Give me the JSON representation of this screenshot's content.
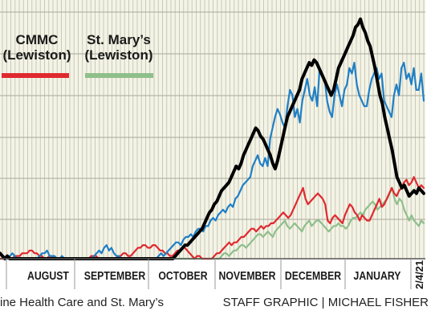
{
  "chart_data": {
    "type": "line",
    "x_labels": [
      "AUGUST",
      "SEPTEMBER",
      "OCTOBER",
      "NOVEMBER",
      "DECEMBER",
      "JANUARY"
    ],
    "end_date_label": "2/4/21",
    "series": [
      {
        "color": "#1f7fc6",
        "values": [
          2,
          1,
          0,
          0,
          1,
          2,
          1,
          0,
          0,
          0,
          0,
          0,
          0,
          0,
          0,
          0,
          1,
          2,
          2,
          3,
          1,
          1,
          1,
          0,
          0,
          1,
          0,
          0,
          0,
          0,
          0,
          0,
          0,
          0,
          0,
          0,
          0,
          0,
          1,
          2,
          3,
          2,
          4,
          5,
          3,
          4,
          2,
          1,
          1,
          0,
          0,
          0,
          0,
          0,
          0,
          0,
          0,
          0,
          0,
          0,
          0,
          0,
          0,
          0,
          1,
          2,
          1,
          2,
          3,
          4,
          5,
          6,
          6,
          5,
          7,
          8,
          8,
          9,
          8,
          10,
          11,
          11,
          10,
          12,
          12,
          14,
          15,
          14,
          16,
          17,
          18,
          17,
          19,
          20,
          19,
          22,
          23,
          25,
          27,
          28,
          29,
          30,
          34,
          36,
          38,
          35,
          34,
          37,
          34,
          44,
          48,
          52,
          55,
          53,
          50,
          48,
          56,
          62,
          60,
          52,
          55,
          50,
          58,
          62,
          66,
          60,
          58,
          63,
          56,
          70,
          68,
          66,
          58,
          54,
          52,
          60,
          64,
          60,
          56,
          62,
          64,
          70,
          68,
          72,
          64,
          60,
          58,
          56,
          56,
          62,
          66,
          68,
          70,
          66,
          68,
          58,
          56,
          54,
          52,
          60,
          64,
          60,
          70,
          72,
          66,
          68,
          64,
          70,
          62,
          62,
          68,
          58
        ]
      },
      {
        "color": "#e0292f",
        "values": [
          0,
          0,
          0,
          0,
          0,
          0,
          1,
          1,
          1,
          2,
          2,
          2,
          3,
          3,
          2,
          2,
          1,
          1,
          0,
          0,
          1,
          1,
          0,
          0,
          0,
          0,
          0,
          0,
          0,
          0,
          0,
          0,
          0,
          0,
          0,
          0,
          0,
          1,
          1,
          1,
          0,
          0,
          0,
          0,
          0,
          0,
          0,
          0,
          1,
          1,
          2,
          2,
          1,
          1,
          2,
          3,
          4,
          4,
          5,
          5,
          4,
          4,
          5,
          5,
          4,
          3,
          3,
          2,
          2,
          1,
          1,
          2,
          3,
          3,
          4,
          4,
          3,
          2,
          1,
          0,
          1,
          1,
          0,
          0,
          0,
          0,
          0,
          1,
          2,
          2,
          3,
          4,
          5,
          6,
          5,
          6,
          6,
          7,
          8,
          8,
          9,
          10,
          11,
          11,
          10,
          11,
          12,
          11,
          12,
          12,
          13,
          13,
          14,
          15,
          16,
          17,
          16,
          15,
          16,
          18,
          20,
          22,
          24,
          26,
          22,
          20,
          21,
          22,
          23,
          24,
          23,
          22,
          20,
          14,
          13,
          15,
          16,
          15,
          14,
          13,
          16,
          18,
          20,
          19,
          17,
          16,
          14,
          16,
          15,
          14,
          14,
          16,
          18,
          20,
          22,
          19,
          20,
          22,
          24,
          26,
          24,
          23,
          25,
          26,
          28,
          29,
          27,
          28,
          30,
          28,
          26,
          27,
          26
        ]
      },
      {
        "color": "#8fbf8b",
        "values": [
          0,
          0,
          0,
          0,
          0,
          0,
          0,
          0,
          0,
          0,
          0,
          0,
          0,
          0,
          0,
          0,
          0,
          0,
          0,
          0,
          0,
          0,
          0,
          0,
          0,
          0,
          0,
          0,
          0,
          0,
          0,
          0,
          0,
          0,
          0,
          0,
          0,
          0,
          0,
          0,
          0,
          0,
          0,
          0,
          0,
          0,
          0,
          0,
          0,
          0,
          0,
          0,
          0,
          0,
          0,
          0,
          0,
          0,
          0,
          0,
          0,
          0,
          0,
          0,
          0,
          0,
          0,
          0,
          0,
          0,
          0,
          0,
          0,
          0,
          0,
          0,
          0,
          0,
          0,
          0,
          0,
          0,
          0,
          0,
          0,
          0,
          0,
          0,
          0,
          0,
          0,
          1,
          2,
          2,
          1,
          2,
          3,
          3,
          4,
          5,
          5,
          4,
          5,
          6,
          7,
          8,
          9,
          9,
          8,
          9,
          10,
          9,
          8,
          10,
          11,
          12,
          13,
          14,
          12,
          11,
          12,
          13,
          12,
          11,
          10,
          12,
          13,
          14,
          12,
          13,
          14,
          14,
          13,
          12,
          11,
          10,
          11,
          12,
          12,
          13,
          12,
          12,
          11,
          12,
          14,
          15,
          15,
          16,
          17,
          16,
          18,
          19,
          20,
          21,
          20,
          18,
          19,
          20,
          21,
          22,
          24,
          26,
          22,
          20,
          22,
          21,
          18,
          16,
          14,
          16,
          14,
          13,
          12,
          14,
          13
        ]
      },
      {
        "color": "#000000",
        "values": [
          2,
          1,
          0,
          1,
          0,
          0,
          0,
          0,
          0,
          0,
          0,
          0,
          0,
          0,
          0,
          0,
          0,
          0,
          0,
          0,
          0,
          0,
          0,
          0,
          0,
          0,
          0,
          0,
          0,
          0,
          0,
          0,
          0,
          0,
          0,
          0,
          0,
          0,
          0,
          0,
          0,
          0,
          0,
          0,
          0,
          0,
          0,
          0,
          0,
          0,
          0,
          0,
          0,
          0,
          0,
          0,
          0,
          0,
          0,
          0,
          0,
          0,
          0,
          0,
          0,
          0,
          0,
          0,
          0,
          0,
          0,
          0,
          1,
          2,
          3,
          4,
          5,
          5,
          6,
          7,
          8,
          9,
          10,
          11,
          13,
          15,
          17,
          18,
          20,
          21,
          23,
          25,
          26,
          27,
          28,
          30,
          32,
          34,
          33,
          35,
          38,
          40,
          42,
          44,
          46,
          48,
          47,
          45,
          44,
          42,
          40,
          38,
          35,
          33,
          36,
          40,
          44,
          48,
          52,
          54,
          56,
          58,
          60,
          62,
          66,
          68,
          70,
          72,
          71,
          73,
          72,
          70,
          68,
          66,
          64,
          62,
          60,
          62,
          66,
          70,
          72,
          74,
          76,
          78,
          80,
          82,
          85,
          86,
          88,
          85,
          83,
          80,
          78,
          74,
          70,
          65,
          60,
          57,
          52,
          48,
          44,
          40,
          35,
          30,
          28,
          26,
          27,
          25,
          23,
          24,
          25,
          24,
          26,
          25,
          24
        ]
      }
    ],
    "legend": [
      {
        "label_line1": "CMMC",
        "label_line2": "(Lewiston)",
        "color": "#e0292f"
      },
      {
        "label_line1": "St. Mary’s",
        "label_line2": "(Lewiston)",
        "color": "#8fbf8b"
      }
    ],
    "grid": true,
    "ylim": [
      0,
      95
    ]
  },
  "footer": {
    "source_text": "ine Health Care and St. Mary’s",
    "credit_text": "STAFF GRAPHIC | MICHAEL FISHER"
  }
}
